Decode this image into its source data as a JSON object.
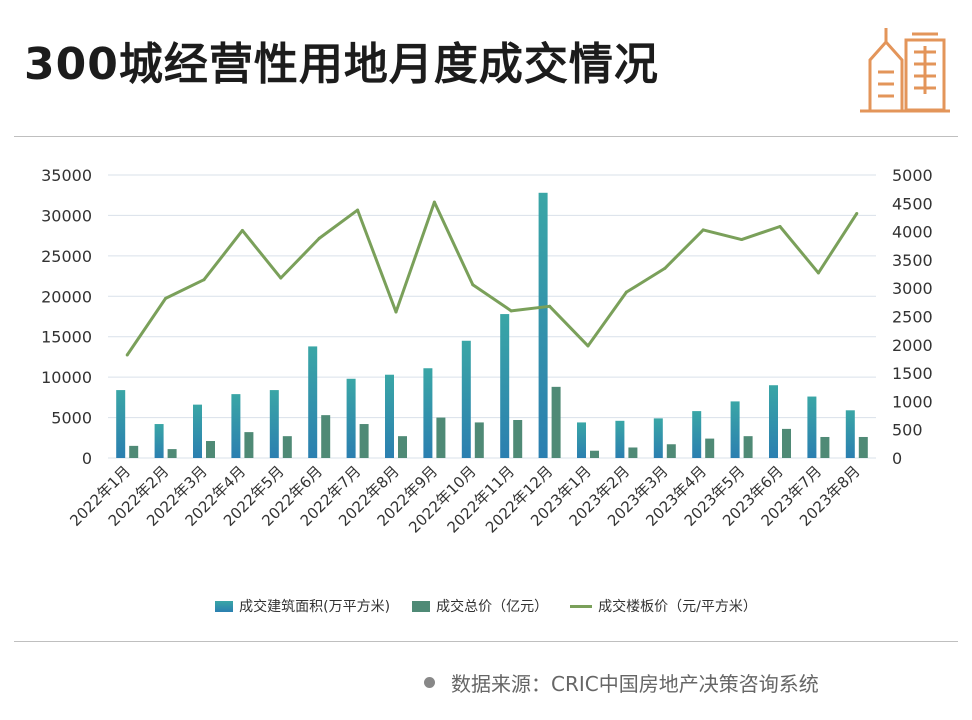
{
  "header": {
    "title": "300城经营性用地月度成交情况"
  },
  "footer": {
    "source": "数据来源：CRIC中国房地产决策咨询系统"
  },
  "colors": {
    "area": "#3aa6a6",
    "area_dark": "#2b7fb0",
    "price_total": "#4f8a76",
    "floor_price": "#7aa05a",
    "grid": "#d9e1ea",
    "logo": "#e3955a"
  },
  "chart_data": {
    "type": "bar",
    "title": "300城经营性用地月度成交情况",
    "categories": [
      "2022年1月",
      "2022年2月",
      "2022年3月",
      "2022年4月",
      "2022年5月",
      "2022年6月",
      "2022年7月",
      "2022年8月",
      "2022年9月",
      "2022年10月",
      "2022年11月",
      "2022年12月",
      "2023年1月",
      "2023年2月",
      "2023年3月",
      "2023年4月",
      "2023年5月",
      "2023年6月",
      "2023年7月",
      "2023年8月"
    ],
    "series": [
      {
        "name": "成交建筑面积(万平方米)",
        "type": "bar",
        "axis": "left",
        "values": [
          8400,
          4200,
          6600,
          7900,
          8400,
          13800,
          9800,
          10300,
          11100,
          14500,
          17800,
          32800,
          4400,
          4600,
          4900,
          5800,
          7000,
          9000,
          7600,
          5900
        ]
      },
      {
        "name": "成交总价（亿元）",
        "type": "bar",
        "axis": "left",
        "values": [
          1500,
          1100,
          2100,
          3200,
          2700,
          5300,
          4200,
          2700,
          5000,
          4400,
          4700,
          8800,
          900,
          1300,
          1700,
          2400,
          2700,
          3600,
          2600,
          2600
        ]
      },
      {
        "name": "成交楼板价（元/平方米）",
        "type": "line",
        "axis": "right",
        "values": [
          1820,
          2820,
          3150,
          4020,
          3180,
          3880,
          4380,
          2580,
          4520,
          3060,
          2600,
          2680,
          1980,
          2930,
          3350,
          4030,
          3860,
          4090,
          3270,
          4320
        ]
      }
    ],
    "yaxis_left": {
      "min": 0,
      "max": 35000,
      "ticks": [
        0,
        5000,
        10000,
        15000,
        20000,
        25000,
        30000,
        35000
      ]
    },
    "yaxis_right": {
      "min": 0,
      "max": 5000,
      "ticks": [
        0,
        500,
        1000,
        1500,
        2000,
        2500,
        3000,
        3500,
        4000,
        4500,
        5000
      ]
    },
    "grid": true,
    "legend_position": "bottom"
  }
}
